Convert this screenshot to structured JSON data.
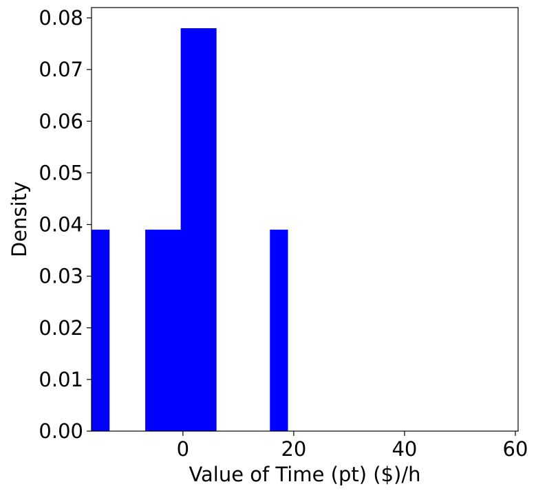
{
  "chart_data": {
    "type": "bar",
    "xlabel": "Value of Time (pt) ($)/h",
    "ylabel": "Density",
    "xlim": [
      -16.5,
      60.5
    ],
    "ylim": [
      0,
      0.082
    ],
    "bar_color": "#0000ff",
    "bins": [
      {
        "x0": -16.5,
        "x1": -13.3,
        "value": 0.039
      },
      {
        "x0": -6.8,
        "x1": -3.6,
        "value": 0.039
      },
      {
        "x0": -3.6,
        "x1": -0.4,
        "value": 0.039
      },
      {
        "x0": -0.4,
        "x1": 2.8,
        "value": 0.078
      },
      {
        "x0": 2.8,
        "x1": 6.0,
        "value": 0.078
      },
      {
        "x0": 15.7,
        "x1": 18.9,
        "value": 0.039
      }
    ],
    "xticks": [
      0,
      20,
      40,
      60
    ],
    "xtick_labels": [
      "0",
      "20",
      "40",
      "60"
    ],
    "yticks": [
      0,
      0.01,
      0.02,
      0.03,
      0.04,
      0.05,
      0.06,
      0.07,
      0.08
    ],
    "ytick_labels": [
      "0.00",
      "0.01",
      "0.02",
      "0.03",
      "0.04",
      "0.05",
      "0.06",
      "0.07",
      "0.08"
    ],
    "grid": false,
    "legend": false
  }
}
